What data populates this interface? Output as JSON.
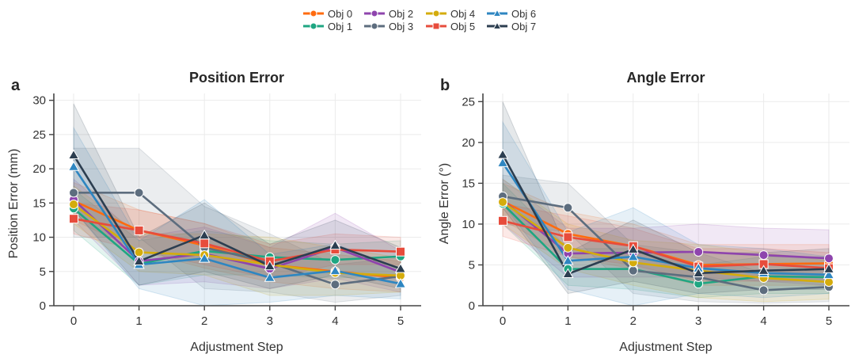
{
  "legend": {
    "entries": [
      {
        "name": "Obj 0",
        "color": "#FF6B0F",
        "marker": "circle"
      },
      {
        "name": "Obj 1",
        "color": "#1FA682",
        "marker": "circle"
      },
      {
        "name": "Obj 2",
        "color": "#8E44AD",
        "marker": "circle"
      },
      {
        "name": "Obj 3",
        "color": "#5D6D7E",
        "marker": "circle"
      },
      {
        "name": "Obj 4",
        "color": "#D4AC0D",
        "marker": "circle"
      },
      {
        "name": "Obj 5",
        "color": "#E74C3C",
        "marker": "square"
      },
      {
        "name": "Obj 6",
        "color": "#2E86C1",
        "marker": "triangle"
      },
      {
        "name": "Obj 7",
        "color": "#2C3E50",
        "marker": "triangle"
      }
    ],
    "placement": "top-center"
  },
  "chart_data": [
    {
      "type": "line",
      "panel": "a",
      "title": "Position Error",
      "xlabel": "Adjustment Step",
      "ylabel": "Position Error (mm)",
      "x": [
        0,
        1,
        2,
        3,
        4,
        5
      ],
      "xticks": [
        "0",
        "1",
        "2",
        "3",
        "4",
        "5"
      ],
      "yticks": [
        "0",
        "5",
        "10",
        "15",
        "20",
        "25",
        "30"
      ],
      "ylim": [
        0,
        31
      ],
      "xlim": [
        -0.3,
        5.3
      ],
      "grid": true,
      "series": [
        {
          "name": "Obj 0",
          "values": [
            15.3,
            11.0,
            8.8,
            6.0,
            5.0,
            4.1
          ],
          "band_low": [
            12.5,
            8.0,
            5.5,
            3.5,
            2.5,
            2.0
          ],
          "band_high": [
            18.0,
            14.0,
            12.0,
            8.5,
            7.5,
            6.5
          ]
        },
        {
          "name": "Obj 1",
          "values": [
            14.2,
            6.1,
            8.0,
            7.1,
            6.7,
            7.2
          ],
          "band_low": [
            11.0,
            3.0,
            4.5,
            4.5,
            4.0,
            4.5
          ],
          "band_high": [
            17.0,
            9.5,
            11.0,
            9.5,
            9.0,
            9.5
          ]
        },
        {
          "name": "Obj 2",
          "values": [
            15.5,
            6.5,
            7.6,
            5.4,
            8.5,
            4.9
          ],
          "band_low": [
            12.5,
            3.0,
            3.5,
            2.5,
            4.0,
            2.0
          ],
          "band_high": [
            18.5,
            10.0,
            11.5,
            8.5,
            13.5,
            8.0
          ]
        },
        {
          "name": "Obj 3",
          "values": [
            16.5,
            16.5,
            8.5,
            6.3,
            3.1,
            4.3
          ],
          "band_low": [
            10.0,
            10.0,
            2.5,
            2.0,
            0.5,
            1.5
          ],
          "band_high": [
            23.0,
            23.0,
            14.5,
            10.5,
            6.0,
            7.0
          ]
        },
        {
          "name": "Obj 4",
          "values": [
            14.8,
            7.8,
            7.4,
            6.0,
            4.8,
            4.4
          ],
          "band_low": [
            12.0,
            5.0,
            4.5,
            1.5,
            1.5,
            2.0
          ],
          "band_high": [
            17.5,
            10.5,
            10.5,
            10.0,
            8.5,
            7.0
          ]
        },
        {
          "name": "Obj 5",
          "values": [
            12.7,
            11.0,
            9.1,
            6.5,
            8.2,
            7.9
          ],
          "band_low": [
            10.5,
            8.0,
            6.0,
            4.0,
            6.0,
            6.0
          ],
          "band_high": [
            15.0,
            14.0,
            12.0,
            9.0,
            10.5,
            10.0
          ]
        },
        {
          "name": "Obj 6",
          "values": [
            20.3,
            6.0,
            6.9,
            4.1,
            5.1,
            3.2
          ],
          "band_low": [
            14.0,
            2.5,
            0.0,
            0.5,
            1.5,
            1.0
          ],
          "band_high": [
            26.0,
            9.5,
            15.5,
            7.5,
            9.0,
            5.5
          ]
        },
        {
          "name": "Obj 7",
          "values": [
            22.0,
            6.5,
            10.3,
            5.8,
            8.8,
            5.4
          ],
          "band_low": [
            14.0,
            3.0,
            5.0,
            2.5,
            4.5,
            2.5
          ],
          "band_high": [
            29.5,
            10.0,
            15.0,
            9.0,
            12.5,
            8.5
          ]
        }
      ]
    },
    {
      "type": "line",
      "panel": "b",
      "title": "Angle Error",
      "xlabel": "Adjustment Step",
      "ylabel": "Angle Error (°)",
      "x": [
        0,
        1,
        2,
        3,
        4,
        5
      ],
      "xticks": [
        "0",
        "1",
        "2",
        "3",
        "4",
        "5"
      ],
      "yticks": [
        "0",
        "5",
        "10",
        "15",
        "20",
        "25"
      ],
      "ylim": [
        0,
        26
      ],
      "xlim": [
        -0.3,
        5.3
      ],
      "grid": true,
      "series": [
        {
          "name": "Obj 0",
          "values": [
            12.8,
            8.8,
            7.3,
            5.0,
            5.1,
            5.2
          ],
          "band_low": [
            10.5,
            6.0,
            4.5,
            2.5,
            2.5,
            2.5
          ],
          "band_high": [
            15.0,
            11.5,
            10.0,
            7.5,
            7.5,
            7.5
          ]
        },
        {
          "name": "Obj 1",
          "values": [
            12.5,
            4.5,
            4.5,
            2.7,
            3.6,
            3.5
          ],
          "band_low": [
            10.0,
            2.5,
            2.0,
            1.0,
            1.5,
            1.5
          ],
          "band_high": [
            15.0,
            7.0,
            7.0,
            5.0,
            6.0,
            6.0
          ]
        },
        {
          "name": "Obj 2",
          "values": [
            12.9,
            6.4,
            6.5,
            6.6,
            6.2,
            5.8
          ],
          "band_low": [
            10.0,
            3.5,
            3.5,
            3.5,
            3.0,
            2.5
          ],
          "band_high": [
            15.5,
            9.5,
            9.5,
            10.0,
            9.5,
            9.3
          ]
        },
        {
          "name": "Obj 3",
          "values": [
            13.4,
            12.0,
            4.3,
            3.5,
            1.9,
            2.3
          ],
          "band_low": [
            10.0,
            9.0,
            1.5,
            0.5,
            0.3,
            0.5
          ],
          "band_high": [
            16.0,
            15.0,
            7.5,
            6.5,
            4.0,
            4.5
          ]
        },
        {
          "name": "Obj 4",
          "values": [
            12.7,
            7.1,
            5.3,
            4.3,
            3.4,
            2.9
          ],
          "band_low": [
            10.0,
            4.5,
            2.5,
            1.0,
            0.5,
            0.8
          ],
          "band_high": [
            15.5,
            10.0,
            8.0,
            7.5,
            6.5,
            5.5
          ]
        },
        {
          "name": "Obj 5",
          "values": [
            10.4,
            8.4,
            7.3,
            4.8,
            5.1,
            4.6
          ],
          "band_low": [
            8.5,
            6.0,
            5.0,
            3.0,
            3.0,
            3.0
          ],
          "band_high": [
            12.5,
            11.0,
            9.5,
            7.0,
            7.0,
            6.5
          ]
        },
        {
          "name": "Obj 6",
          "values": [
            17.5,
            5.5,
            6.0,
            4.6,
            4.0,
            3.8
          ],
          "band_low": [
            12.5,
            2.0,
            0.0,
            1.5,
            1.0,
            1.5
          ],
          "band_high": [
            22.5,
            9.0,
            12.0,
            7.5,
            7.0,
            6.0
          ]
        },
        {
          "name": "Obj 7",
          "values": [
            18.5,
            3.9,
            6.9,
            4.0,
            4.3,
            4.5
          ],
          "band_low": [
            12.0,
            1.5,
            3.0,
            1.5,
            2.0,
            2.0
          ],
          "band_high": [
            25.0,
            6.5,
            10.5,
            6.5,
            6.5,
            7.0
          ]
        }
      ]
    }
  ]
}
